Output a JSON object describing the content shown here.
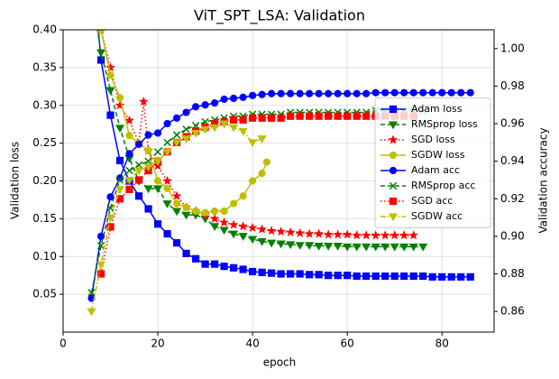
{
  "chart_data": {
    "type": "line",
    "title": "ViT_SPT_LSA: Validation",
    "x_label": "epoch",
    "y_label": "Validation loss",
    "y2_label": "Validation accuracy",
    "xlim": [
      0,
      91
    ],
    "xticks": [
      0,
      20,
      40,
      60,
      80
    ],
    "ylim": [
      0,
      0.4
    ],
    "yticks": [
      0.05,
      {
        "value": 0.1,
        "label": "0.10"
      },
      0.15,
      {
        "value": 0.2,
        "label": "0.20"
      },
      0.25,
      {
        "value": 0.3,
        "label": "0.30"
      },
      0.35,
      {
        "value": 0.4,
        "label": "0.40"
      }
    ],
    "y2lim": [
      0.849,
      1.01
    ],
    "y2ticks": [
      0.86,
      0.88,
      {
        "value": 0.9,
        "label": "0.90"
      },
      0.92,
      0.94,
      0.96,
      0.98,
      {
        "value": 1,
        "label": "1.00"
      }
    ],
    "grid": true,
    "legend": "center right",
    "series": [
      {
        "name": "Adam loss",
        "color": "#0000ff",
        "marker": "square",
        "linestyle": "solid",
        "axis": "y",
        "x": [
          6,
          8,
          10,
          12,
          14,
          16,
          18,
          20,
          22,
          24,
          26,
          28,
          30,
          32,
          34,
          36,
          38,
          40,
          42,
          44,
          46,
          48,
          50,
          52,
          54,
          56,
          58,
          60,
          62,
          64,
          66,
          68,
          70,
          72,
          74,
          76,
          78,
          80,
          82,
          84,
          86
        ],
        "values": [
          0.5,
          0.36,
          0.287,
          0.227,
          0.2,
          0.18,
          0.163,
          0.143,
          0.13,
          0.118,
          0.104,
          0.097,
          0.09,
          0.09,
          0.087,
          0.085,
          0.083,
          0.08,
          0.079,
          0.078,
          0.077,
          0.077,
          0.077,
          0.076,
          0.076,
          0.075,
          0.075,
          0.075,
          0.074,
          0.074,
          0.074,
          0.074,
          0.074,
          0.074,
          0.074,
          0.074,
          0.073,
          0.073,
          0.073,
          0.073,
          0.073
        ]
      },
      {
        "name": "RMSprop loss",
        "color": "#008000",
        "marker": "triangle-down",
        "linestyle": "dashed",
        "axis": "y",
        "x": [
          6,
          8,
          10,
          12,
          14,
          16,
          18,
          20,
          22,
          24,
          26,
          28,
          30,
          32,
          34,
          36,
          38,
          40,
          42,
          44,
          46,
          48,
          50,
          52,
          54,
          56,
          58,
          60,
          62,
          64,
          66,
          68,
          70,
          72,
          74,
          76
        ],
        "values": [
          0.45,
          0.37,
          0.32,
          0.27,
          0.23,
          0.2,
          0.19,
          0.19,
          0.17,
          0.16,
          0.155,
          0.155,
          0.15,
          0.14,
          0.135,
          0.13,
          0.127,
          0.123,
          0.12,
          0.118,
          0.117,
          0.116,
          0.115,
          0.115,
          0.114,
          0.114,
          0.114,
          0.113,
          0.113,
          0.113,
          0.113,
          0.113,
          0.113,
          0.113,
          0.113,
          0.113
        ]
      },
      {
        "name": "SGD loss",
        "color": "#ff0000",
        "marker": "star",
        "linestyle": "dotted",
        "axis": "y",
        "x": [
          8,
          10,
          12,
          14,
          16,
          17,
          18,
          20,
          22,
          24,
          26,
          28,
          30,
          32,
          34,
          36,
          38,
          40,
          42,
          44,
          46,
          48,
          50,
          52,
          54,
          56,
          58,
          60,
          62,
          64,
          66,
          68,
          70,
          72,
          74
        ],
        "values": [
          0.4,
          0.35,
          0.3,
          0.28,
          0.25,
          0.305,
          0.24,
          0.22,
          0.2,
          0.18,
          0.165,
          0.16,
          0.155,
          0.15,
          0.145,
          0.142,
          0.14,
          0.138,
          0.136,
          0.134,
          0.133,
          0.132,
          0.131,
          0.13,
          0.13,
          0.129,
          0.129,
          0.129,
          0.128,
          0.128,
          0.128,
          0.128,
          0.128,
          0.128,
          0.128
        ]
      },
      {
        "name": "SGDW loss",
        "color": "#bfbf00",
        "marker": "circle",
        "linestyle": "solid",
        "axis": "y",
        "x": [
          8,
          10,
          12,
          14,
          16,
          18,
          20,
          22,
          24,
          26,
          28,
          30,
          32,
          34,
          36,
          38,
          40,
          42,
          43
        ],
        "values": [
          0.4,
          0.34,
          0.31,
          0.26,
          0.25,
          0.24,
          0.2,
          0.19,
          0.17,
          0.165,
          0.16,
          0.158,
          0.16,
          0.16,
          0.17,
          0.18,
          0.2,
          0.21,
          0.225
        ]
      },
      {
        "name": "Adam acc",
        "color": "#0000ff",
        "marker": "circle",
        "linestyle": "solid",
        "axis": "y2",
        "x": [
          6,
          8,
          10,
          12,
          14,
          16,
          18,
          20,
          22,
          24,
          26,
          28,
          30,
          32,
          34,
          36,
          38,
          40,
          42,
          44,
          46,
          48,
          50,
          52,
          54,
          56,
          58,
          60,
          62,
          64,
          66,
          68,
          70,
          72,
          74,
          76,
          78,
          80,
          82,
          84,
          86
        ],
        "values": [
          0.867,
          0.9,
          0.921,
          0.931,
          0.944,
          0.949,
          0.954,
          0.955,
          0.96,
          0.963,
          0.966,
          0.969,
          0.97,
          0.971,
          0.973,
          0.9735,
          0.974,
          0.975,
          0.9755,
          0.976,
          0.976,
          0.976,
          0.976,
          0.976,
          0.976,
          0.976,
          0.976,
          0.976,
          0.976,
          0.976,
          0.9765,
          0.9765,
          0.9765,
          0.9765,
          0.9765,
          0.9765,
          0.9765,
          0.9765,
          0.9765,
          0.9765,
          0.9765
        ]
      },
      {
        "name": "RMSprop acc",
        "color": "#008000",
        "marker": "x",
        "linestyle": "dashed",
        "axis": "y2",
        "x": [
          6,
          8,
          10,
          12,
          14,
          16,
          18,
          20,
          22,
          24,
          26,
          28,
          30,
          32,
          34,
          36,
          38,
          40,
          42,
          44,
          46,
          48,
          50,
          52,
          54,
          56,
          58,
          60,
          62,
          64,
          66,
          68,
          70,
          72,
          74,
          76
        ],
        "values": [
          0.87,
          0.895,
          0.915,
          0.93,
          0.935,
          0.938,
          0.94,
          0.945,
          0.95,
          0.954,
          0.957,
          0.959,
          0.961,
          0.962,
          0.963,
          0.964,
          0.964,
          0.965,
          0.965,
          0.965,
          0.965,
          0.966,
          0.966,
          0.966,
          0.966,
          0.966,
          0.966,
          0.966,
          0.966,
          0.966,
          0.967,
          0.967,
          0.967,
          0.967,
          0.967,
          0.967
        ]
      },
      {
        "name": "SGD acc",
        "color": "#ff0000",
        "marker": "square",
        "linestyle": "dotted",
        "axis": "y2",
        "x": [
          8,
          10,
          12,
          14,
          16,
          18,
          20,
          22,
          24,
          26,
          28,
          30,
          32,
          34,
          36,
          38,
          40,
          42,
          44,
          46,
          48,
          50,
          52,
          54,
          56,
          58,
          60,
          62,
          64,
          66,
          68,
          70,
          72,
          74
        ],
        "values": [
          0.88,
          0.905,
          0.92,
          0.925,
          0.93,
          0.935,
          0.94,
          0.945,
          0.95,
          0.953,
          0.956,
          0.958,
          0.96,
          0.961,
          0.962,
          0.962,
          0.963,
          0.963,
          0.963,
          0.963,
          0.964,
          0.964,
          0.964,
          0.964,
          0.964,
          0.964,
          0.964,
          0.964,
          0.964,
          0.964,
          0.964,
          0.964,
          0.964,
          0.964
        ]
      },
      {
        "name": "SGDW acc",
        "color": "#bfbf00",
        "marker": "triangle-down",
        "linestyle": "dashdot",
        "axis": "y2",
        "x": [
          6,
          8,
          10,
          12,
          14,
          16,
          18,
          20,
          22,
          24,
          26,
          28,
          30,
          32,
          34,
          36,
          38,
          40,
          42
        ],
        "values": [
          0.86,
          0.885,
          0.91,
          0.925,
          0.93,
          0.935,
          0.937,
          0.94,
          0.945,
          0.95,
          0.952,
          0.955,
          0.957,
          0.958,
          0.96,
          0.958,
          0.956,
          0.95,
          0.952
        ]
      }
    ]
  }
}
